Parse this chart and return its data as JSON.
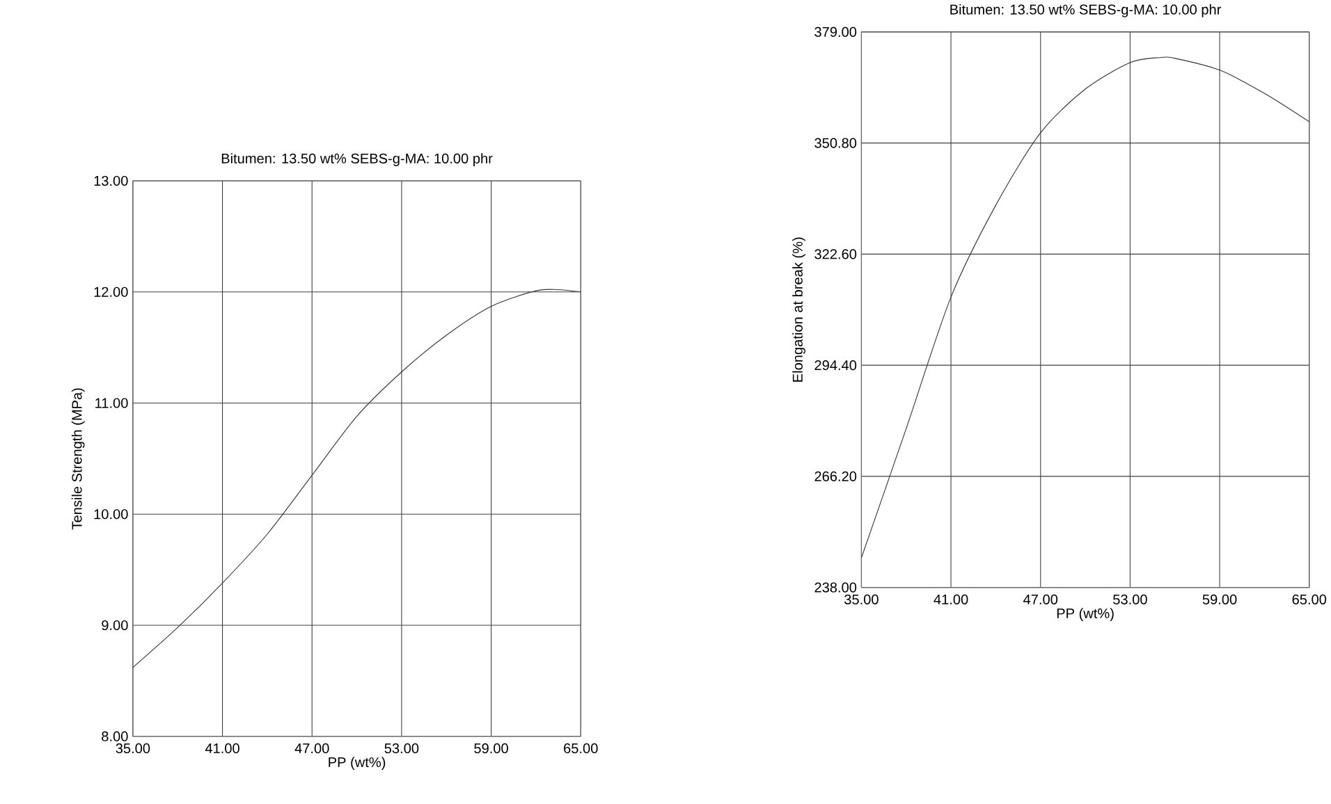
{
  "chart_data": [
    {
      "type": "line",
      "title": "Bitumen: 13.50 wt%      SEBS-g-MA: 10.00 phr",
      "xlabel": "PP (wt%)",
      "ylabel": "Tensile Strength  (MPa)",
      "series": [
        {
          "color": "#333333",
          "x": [
            35,
            38,
            41,
            44,
            47,
            50,
            53,
            56,
            59,
            62,
            63.5,
            65
          ],
          "values": [
            8.62,
            8.98,
            9.38,
            9.82,
            10.35,
            10.88,
            11.28,
            11.61,
            11.87,
            12.01,
            12.02,
            12.0
          ]
        }
      ],
      "xlim": [
        35,
        65
      ],
      "ylim": [
        8,
        13
      ],
      "xticks": [
        {
          "value": 35,
          "label": "35.00"
        },
        {
          "value": 41,
          "label": "41.00"
        },
        {
          "value": 47,
          "label": "47.00"
        },
        {
          "value": 53,
          "label": "53.00"
        },
        {
          "value": 59,
          "label": "59.00"
        },
        {
          "value": 65,
          "label": "65.00"
        }
      ],
      "yticks": [
        {
          "value": 8,
          "label": "8.00"
        },
        {
          "value": 9,
          "label": "9.00"
        },
        {
          "value": 10,
          "label": "10.00"
        },
        {
          "value": 11,
          "label": "11.00"
        },
        {
          "value": 12,
          "label": "12.00"
        },
        {
          "value": 13,
          "label": "13.00"
        }
      ],
      "grid": true,
      "marker": "none",
      "line_style": "solid"
    },
    {
      "type": "line",
      "title": "Bitumen: 13.50 wt%      SEBS-g-MA: 10.00 phr",
      "xlabel": "PP (wt%)",
      "ylabel": "Elongation at break  (%)",
      "series": [
        {
          "color": "#333333",
          "x": [
            35,
            38,
            41,
            44,
            47,
            50,
            53,
            55,
            56,
            59,
            62,
            65
          ],
          "values": [
            245.5,
            278.3,
            311.7,
            335.0,
            353.4,
            364.5,
            371.2,
            372.5,
            372.3,
            369.3,
            363.4,
            356.2
          ]
        }
      ],
      "xlim": [
        35,
        65
      ],
      "ylim": [
        238,
        379
      ],
      "xticks": [
        {
          "value": 35,
          "label": "35.00"
        },
        {
          "value": 41,
          "label": "41.00"
        },
        {
          "value": 47,
          "label": "47.00"
        },
        {
          "value": 53,
          "label": "53.00"
        },
        {
          "value": 59,
          "label": "59.00"
        },
        {
          "value": 65,
          "label": "65.00"
        }
      ],
      "yticks": [
        {
          "value": 238,
          "label": "238.00"
        },
        {
          "value": 266.2,
          "label": "266.20"
        },
        {
          "value": 294.4,
          "label": "294.40"
        },
        {
          "value": 322.6,
          "label": "322.60"
        },
        {
          "value": 350.8,
          "label": "350.80"
        },
        {
          "value": 379,
          "label": "379.00"
        }
      ],
      "grid": true,
      "marker": "none",
      "line_style": "solid"
    }
  ]
}
